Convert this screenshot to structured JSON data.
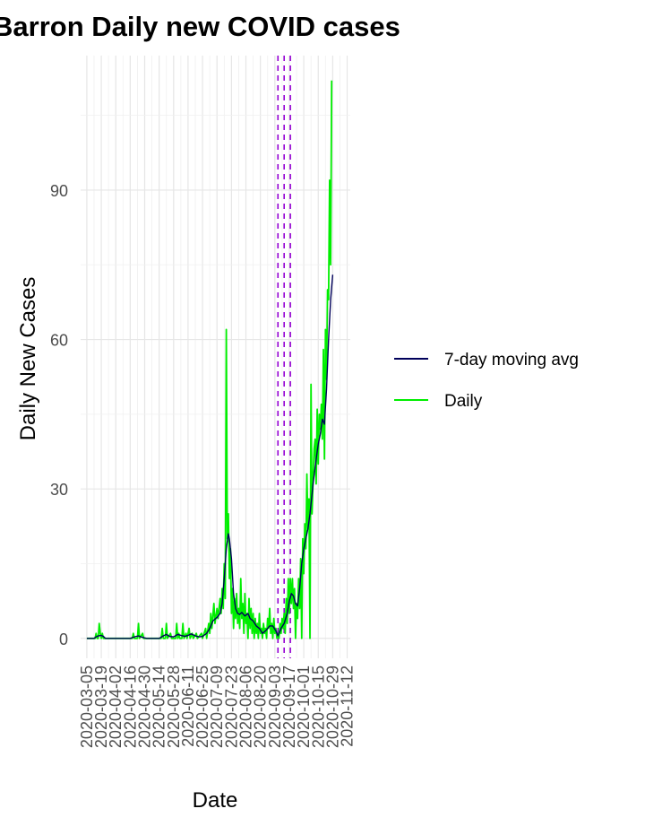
{
  "chart_data": {
    "type": "line",
    "title": "Barron Daily new COVID cases",
    "xlabel": "Date",
    "ylabel": "Daily New Cases",
    "ylim": [
      -4,
      117
    ],
    "xlim": [
      "2020-02-28",
      "2020-11-15"
    ],
    "yticks": [
      0,
      30,
      60,
      90
    ],
    "xticks": [
      "2020-03-05",
      "2020-03-19",
      "2020-04-02",
      "2020-04-16",
      "2020-04-30",
      "2020-05-14",
      "2020-05-28",
      "2020-06-11",
      "2020-06-25",
      "2020-07-09",
      "2020-07-23",
      "2020-08-06",
      "2020-08-20",
      "2020-09-03",
      "2020-09-17",
      "2020-10-01",
      "2020-10-15",
      "2020-10-29",
      "2020-11-12"
    ],
    "grid": true,
    "legend_position": "right",
    "vlines": {
      "dates": [
        "2020-09-06",
        "2020-09-12",
        "2020-09-18"
      ],
      "color": "#9400D3",
      "style": "dashed"
    },
    "series": [
      {
        "name": "7-day moving avg",
        "color": "#00005a",
        "points": [
          [
            "2020-03-05",
            0
          ],
          [
            "2020-03-12",
            0
          ],
          [
            "2020-03-14",
            0.3
          ],
          [
            "2020-03-16",
            0.5
          ],
          [
            "2020-03-19",
            0.6
          ],
          [
            "2020-03-21",
            0.4
          ],
          [
            "2020-03-23",
            0
          ],
          [
            "2020-04-16",
            0
          ],
          [
            "2020-04-20",
            0.3
          ],
          [
            "2020-04-24",
            0.5
          ],
          [
            "2020-04-28",
            0.2
          ],
          [
            "2020-05-02",
            0
          ],
          [
            "2020-05-14",
            0
          ],
          [
            "2020-05-18",
            0.5
          ],
          [
            "2020-05-21",
            0.8
          ],
          [
            "2020-05-24",
            0.4
          ],
          [
            "2020-05-28",
            0.3
          ],
          [
            "2020-06-01",
            0.8
          ],
          [
            "2020-06-04",
            0.6
          ],
          [
            "2020-06-08",
            0.4
          ],
          [
            "2020-06-11",
            0.6
          ],
          [
            "2020-06-14",
            0.9
          ],
          [
            "2020-06-18",
            0.5
          ],
          [
            "2020-06-22",
            0.3
          ],
          [
            "2020-06-25",
            0.4
          ],
          [
            "2020-06-29",
            1.0
          ],
          [
            "2020-07-02",
            2.0
          ],
          [
            "2020-07-05",
            3.5
          ],
          [
            "2020-07-09",
            4.2
          ],
          [
            "2020-07-12",
            5.0
          ],
          [
            "2020-07-14",
            7.0
          ],
          [
            "2020-07-16",
            12.0
          ],
          [
            "2020-07-18",
            18.0
          ],
          [
            "2020-07-20",
            21.0
          ],
          [
            "2020-07-21",
            20.0
          ],
          [
            "2020-07-23",
            16.0
          ],
          [
            "2020-07-25",
            9.0
          ],
          [
            "2020-07-27",
            6.0
          ],
          [
            "2020-07-29",
            5.0
          ],
          [
            "2020-07-31",
            4.8
          ],
          [
            "2020-08-02",
            5.2
          ],
          [
            "2020-08-05",
            4.5
          ],
          [
            "2020-08-08",
            5.0
          ],
          [
            "2020-08-10",
            4.0
          ],
          [
            "2020-08-13",
            3.5
          ],
          [
            "2020-08-16",
            2.5
          ],
          [
            "2020-08-19",
            2.0
          ],
          [
            "2020-08-22",
            1.0
          ],
          [
            "2020-08-25",
            1.5
          ],
          [
            "2020-08-29",
            2.5
          ],
          [
            "2020-09-01",
            2.5
          ],
          [
            "2020-09-04",
            1.5
          ],
          [
            "2020-09-06",
            0.5
          ],
          [
            "2020-09-09",
            2.0
          ],
          [
            "2020-09-12",
            3.0
          ],
          [
            "2020-09-15",
            5.0
          ],
          [
            "2020-09-17",
            7.5
          ],
          [
            "2020-09-19",
            9.0
          ],
          [
            "2020-09-21",
            8.5
          ],
          [
            "2020-09-23",
            7.0
          ],
          [
            "2020-09-25",
            6.5
          ],
          [
            "2020-09-27",
            10.0
          ],
          [
            "2020-09-29",
            15.0
          ],
          [
            "2020-10-01",
            18.0
          ],
          [
            "2020-10-03",
            20.0
          ],
          [
            "2020-10-05",
            22.0
          ],
          [
            "2020-10-07",
            25.0
          ],
          [
            "2020-10-10",
            31.0
          ],
          [
            "2020-10-13",
            36.0
          ],
          [
            "2020-10-15",
            39.0
          ],
          [
            "2020-10-17",
            41.0
          ],
          [
            "2020-10-19",
            44.0
          ],
          [
            "2020-10-21",
            43.0
          ],
          [
            "2020-10-23",
            50.0
          ],
          [
            "2020-10-25",
            60.0
          ],
          [
            "2020-10-27",
            68.0
          ],
          [
            "2020-10-29",
            73.0
          ]
        ]
      },
      {
        "name": "Daily",
        "color": "#00ee00",
        "points": [
          [
            "2020-03-05",
            0
          ],
          [
            "2020-03-13",
            0
          ],
          [
            "2020-03-14",
            1
          ],
          [
            "2020-03-15",
            0
          ],
          [
            "2020-03-16",
            0
          ],
          [
            "2020-03-17",
            3
          ],
          [
            "2020-03-18",
            1
          ],
          [
            "2020-03-19",
            0
          ],
          [
            "2020-03-20",
            1
          ],
          [
            "2020-03-21",
            0
          ],
          [
            "2020-04-18",
            0
          ],
          [
            "2020-04-19",
            1
          ],
          [
            "2020-04-20",
            0
          ],
          [
            "2020-04-23",
            0
          ],
          [
            "2020-04-24",
            3
          ],
          [
            "2020-04-25",
            0
          ],
          [
            "2020-04-28",
            1
          ],
          [
            "2020-04-29",
            0
          ],
          [
            "2020-05-16",
            0
          ],
          [
            "2020-05-17",
            2
          ],
          [
            "2020-05-18",
            0
          ],
          [
            "2020-05-20",
            0
          ],
          [
            "2020-05-21",
            3
          ],
          [
            "2020-05-22",
            0
          ],
          [
            "2020-05-25",
            1
          ],
          [
            "2020-05-26",
            0
          ],
          [
            "2020-05-30",
            0
          ],
          [
            "2020-05-31",
            3
          ],
          [
            "2020-06-01",
            0
          ],
          [
            "2020-06-02",
            1
          ],
          [
            "2020-06-03",
            0
          ],
          [
            "2020-06-05",
            0
          ],
          [
            "2020-06-06",
            3
          ],
          [
            "2020-06-07",
            0
          ],
          [
            "2020-06-09",
            1
          ],
          [
            "2020-06-10",
            0
          ],
          [
            "2020-06-12",
            2
          ],
          [
            "2020-06-13",
            0
          ],
          [
            "2020-06-15",
            1
          ],
          [
            "2020-06-16",
            0
          ],
          [
            "2020-06-19",
            1
          ],
          [
            "2020-06-20",
            0
          ],
          [
            "2020-06-24",
            1
          ],
          [
            "2020-06-25",
            0
          ],
          [
            "2020-06-28",
            2
          ],
          [
            "2020-06-29",
            0
          ],
          [
            "2020-07-01",
            3
          ],
          [
            "2020-07-02",
            1
          ],
          [
            "2020-07-03",
            5
          ],
          [
            "2020-07-04",
            2
          ],
          [
            "2020-07-06",
            7
          ],
          [
            "2020-07-07",
            3
          ],
          [
            "2020-07-09",
            6
          ],
          [
            "2020-07-10",
            4
          ],
          [
            "2020-07-12",
            8
          ],
          [
            "2020-07-13",
            5
          ],
          [
            "2020-07-14",
            10
          ],
          [
            "2020-07-15",
            6
          ],
          [
            "2020-07-16",
            15
          ],
          [
            "2020-07-17",
            8
          ],
          [
            "2020-07-18",
            62
          ],
          [
            "2020-07-19",
            20
          ],
          [
            "2020-07-20",
            25
          ],
          [
            "2020-07-21",
            12
          ],
          [
            "2020-07-22",
            18
          ],
          [
            "2020-07-23",
            5
          ],
          [
            "2020-07-24",
            10
          ],
          [
            "2020-07-25",
            2
          ],
          [
            "2020-07-26",
            8
          ],
          [
            "2020-07-27",
            4
          ],
          [
            "2020-07-28",
            9
          ],
          [
            "2020-07-29",
            3
          ],
          [
            "2020-07-30",
            6
          ],
          [
            "2020-07-31",
            2
          ],
          [
            "2020-08-01",
            12
          ],
          [
            "2020-08-02",
            4
          ],
          [
            "2020-08-03",
            7
          ],
          [
            "2020-08-04",
            1
          ],
          [
            "2020-08-05",
            9
          ],
          [
            "2020-08-06",
            3
          ],
          [
            "2020-08-07",
            5
          ],
          [
            "2020-08-08",
            0
          ],
          [
            "2020-08-09",
            8
          ],
          [
            "2020-08-10",
            2
          ],
          [
            "2020-08-11",
            6
          ],
          [
            "2020-08-12",
            1
          ],
          [
            "2020-08-13",
            5
          ],
          [
            "2020-08-14",
            0
          ],
          [
            "2020-08-15",
            4
          ],
          [
            "2020-08-16",
            1
          ],
          [
            "2020-08-17",
            3
          ],
          [
            "2020-08-18",
            0
          ],
          [
            "2020-08-19",
            5
          ],
          [
            "2020-08-20",
            1
          ],
          [
            "2020-08-21",
            2
          ],
          [
            "2020-08-22",
            0
          ],
          [
            "2020-08-23",
            3
          ],
          [
            "2020-08-24",
            1
          ],
          [
            "2020-08-25",
            2
          ],
          [
            "2020-08-26",
            0
          ],
          [
            "2020-08-27",
            4
          ],
          [
            "2020-08-28",
            2
          ],
          [
            "2020-08-29",
            6
          ],
          [
            "2020-08-30",
            1
          ],
          [
            "2020-08-31",
            3
          ],
          [
            "2020-09-01",
            0
          ],
          [
            "2020-09-02",
            4
          ],
          [
            "2020-09-03",
            1
          ],
          [
            "2020-09-04",
            2
          ],
          [
            "2020-09-05",
            0
          ],
          [
            "2020-09-06",
            1
          ],
          [
            "2020-09-07",
            0
          ],
          [
            "2020-09-08",
            3
          ],
          [
            "2020-09-09",
            1
          ],
          [
            "2020-09-10",
            4
          ],
          [
            "2020-09-11",
            2
          ],
          [
            "2020-09-12",
            5
          ],
          [
            "2020-09-13",
            1
          ],
          [
            "2020-09-14",
            8
          ],
          [
            "2020-09-15",
            3
          ],
          [
            "2020-09-16",
            12
          ],
          [
            "2020-09-17",
            5
          ],
          [
            "2020-09-18",
            12
          ],
          [
            "2020-09-19",
            7
          ],
          [
            "2020-09-20",
            12
          ],
          [
            "2020-09-21",
            6
          ],
          [
            "2020-09-22",
            10
          ],
          [
            "2020-09-23",
            0
          ],
          [
            "2020-09-24",
            7
          ],
          [
            "2020-09-25",
            4
          ],
          [
            "2020-09-26",
            12
          ],
          [
            "2020-09-27",
            6
          ],
          [
            "2020-09-28",
            16
          ],
          [
            "2020-09-29",
            0
          ],
          [
            "2020-09-30",
            20
          ],
          [
            "2020-10-01",
            13
          ],
          [
            "2020-10-02",
            23
          ],
          [
            "2020-10-03",
            18
          ],
          [
            "2020-10-04",
            33
          ],
          [
            "2020-10-05",
            22
          ],
          [
            "2020-10-06",
            28
          ],
          [
            "2020-10-07",
            0
          ],
          [
            "2020-10-08",
            51
          ],
          [
            "2020-10-09",
            25
          ],
          [
            "2020-10-10",
            32
          ],
          [
            "2020-10-11",
            38
          ],
          [
            "2020-10-12",
            40
          ],
          [
            "2020-10-13",
            31
          ],
          [
            "2020-10-14",
            46
          ],
          [
            "2020-10-15",
            35
          ],
          [
            "2020-10-16",
            45
          ],
          [
            "2020-10-17",
            42
          ],
          [
            "2020-10-18",
            47
          ],
          [
            "2020-10-19",
            40
          ],
          [
            "2020-10-20",
            58
          ],
          [
            "2020-10-21",
            36
          ],
          [
            "2020-10-22",
            62
          ],
          [
            "2020-10-23",
            52
          ],
          [
            "2020-10-24",
            70
          ],
          [
            "2020-10-25",
            68
          ],
          [
            "2020-10-26",
            92
          ],
          [
            "2020-10-27",
            75
          ],
          [
            "2020-10-28",
            112
          ]
        ]
      }
    ]
  }
}
